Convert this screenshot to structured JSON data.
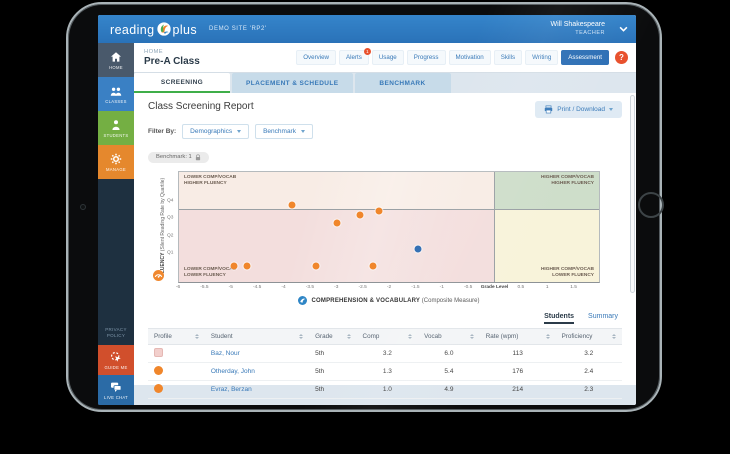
{
  "header": {
    "logo_reading": "reading",
    "logo_plus": "plus",
    "site_label": "DEMO SITE 'RP2'",
    "user_name": "Will Shakespeare",
    "user_role": "TEACHER"
  },
  "sidebar": {
    "items": [
      {
        "label": "HOME"
      },
      {
        "label": "CLASSES"
      },
      {
        "label": "STUDENTS"
      },
      {
        "label": "MANAGE"
      }
    ],
    "privacy_lines": [
      "PRIVACY",
      "POLICY"
    ],
    "guide_me_label": "GUIDE ME",
    "live_chat_label": "LIVE CHAT"
  },
  "topbar": {
    "breadcrumb": "HOME",
    "page_title": "Pre-A Class",
    "tabs": [
      "Overview",
      "Alerts",
      "Usage",
      "Progress",
      "Motivation",
      "Skills",
      "Writing",
      "Assessment"
    ],
    "active_tab": "Assessment",
    "alerts_badge": "1",
    "help_label": "?"
  },
  "subtabs": [
    "SCREENING",
    "PLACEMENT & SCHEDULE",
    "BENCHMARK"
  ],
  "active_subtab": "SCREENING",
  "report": {
    "title": "Class Screening Report",
    "filter_by_label": "Filter By:",
    "filters": [
      "Demographics",
      "Benchmark"
    ],
    "benchmark_chip": "Benchmark: 1",
    "print_label": "Print / Download"
  },
  "chart_data": {
    "type": "scatter",
    "xlabel_bold": "COMPREHENSION & VOCABULARY",
    "xlabel_note": " (Composite Measure)",
    "ylabel_bold": "FLUENCY",
    "ylabel_note": " (Silent Reading Rate by Quartile)",
    "xlim": [
      -6,
      2
    ],
    "x_tick_labels": [
      "-6",
      "-5.5",
      "-5",
      "-4.5",
      "-4",
      "-3.5",
      "-3",
      "-2.5",
      "-2",
      "-1.5",
      "-1",
      "-0.5",
      "Grade Level",
      "0.5",
      "1",
      "1.5"
    ],
    "grade_level_label": "Grade Level",
    "y_ticks": [
      "Q4",
      "Q3",
      "Q2",
      "Q1"
    ],
    "boundary_x": 0,
    "quadrant_labels": {
      "top_left": [
        "LOWER COMP/VOCAB",
        "HIGHER FLUENCY"
      ],
      "top_right": [
        "HIGHER COMP/VOCAB",
        "HIGHER FLUENCY"
      ],
      "bottom_left": [
        "LOWER COMP/VOCAB",
        "LOWER FLUENCY"
      ],
      "bottom_right": [
        "HIGHER COMP/VOCAB",
        "LOWER FLUENCY"
      ]
    },
    "quadrant_colors": {
      "top_left": "#f8ece5",
      "top_right": "#cedeca",
      "bottom_left": "#f3dedd",
      "bottom_right": "#f8f3da"
    },
    "series": [
      {
        "name": "students",
        "color": "#f0862b",
        "points": [
          {
            "x": -4.95,
            "q": 0.27
          },
          {
            "x": -4.7,
            "q": 0.27
          },
          {
            "x": -3.85,
            "q": 3.73
          },
          {
            "x": -3.4,
            "q": 0.27
          },
          {
            "x": -3.0,
            "q": 2.74
          },
          {
            "x": -2.55,
            "q": 3.18
          },
          {
            "x": -2.3,
            "q": 0.27
          },
          {
            "x": -2.2,
            "q": 3.43
          }
        ]
      },
      {
        "name": "selected-student",
        "color": "#2e6cb2",
        "points": [
          {
            "x": -1.45,
            "q": 1.25
          }
        ]
      }
    ],
    "layout": {
      "q1_top_pct": 74,
      "q_step_pct": 16,
      "y_tick_pcts": [
        26,
        42,
        58,
        74
      ],
      "legend_position": "none",
      "grid": false
    }
  },
  "table": {
    "view_tabs": [
      "Students",
      "Summary"
    ],
    "active_view": "Students",
    "columns": [
      "Profile",
      "Student",
      "Grade",
      "Comp",
      "Vocab",
      "Rate (wpm)",
      "Proficiency"
    ],
    "rows": [
      {
        "profile": "pink-square",
        "name": "Baz, Nour",
        "grade": "5th",
        "comp": "3.2",
        "vocab": "6.0",
        "rate": "113",
        "proficiency": "3.2"
      },
      {
        "profile": "orange-circle",
        "name": "Otherday, John",
        "grade": "5th",
        "comp": "1.3",
        "vocab": "5.4",
        "rate": "176",
        "proficiency": "2.4"
      },
      {
        "profile": "orange-circle",
        "name": "Evraz, Berzan",
        "grade": "5th",
        "comp": "1.0",
        "vocab": "4.9",
        "rate": "214",
        "proficiency": "2.3"
      }
    ]
  },
  "colors": {
    "header_blue": "#2f7cc1",
    "accent_blue": "#3879b8",
    "active_tab_blue": "#2d6fb5",
    "alert_red": "#e8502c",
    "screening_green": "#3fae49",
    "student_orange": "#f0862b",
    "selected_blue": "#2e6cb2"
  }
}
